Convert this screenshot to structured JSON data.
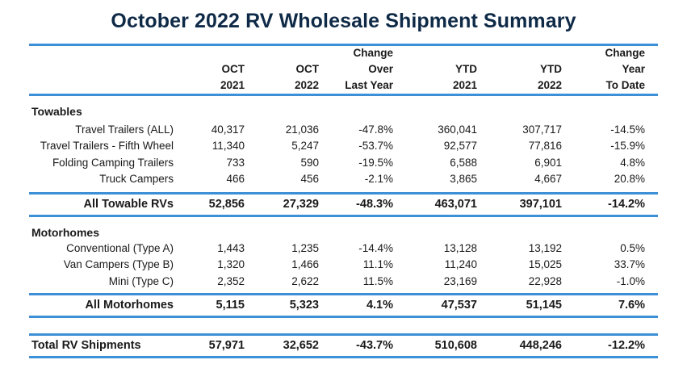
{
  "title": "October 2022 RV Wholesale Shipment Summary",
  "colors": {
    "title": "#0f2a47",
    "rule": "#3d8fd6"
  },
  "headers": [
    {
      "l1": "",
      "l2": "OCT",
      "l3": "2021"
    },
    {
      "l1": "",
      "l2": "OCT",
      "l3": "2022"
    },
    {
      "l1": "Change",
      "l2": "Over",
      "l3": "Last Year"
    },
    {
      "l1": "",
      "l2": "YTD",
      "l3": "2021"
    },
    {
      "l1": "",
      "l2": "YTD",
      "l3": "2022"
    },
    {
      "l1": "Change",
      "l2": "Year",
      "l3": "To Date"
    }
  ],
  "towables": {
    "heading": "Towables",
    "rows": [
      {
        "label": "Travel Trailers (ALL)",
        "v": [
          "40,317",
          "21,036",
          "-47.8%",
          "360,041",
          "307,717",
          "-14.5%"
        ]
      },
      {
        "label": "Travel Trailers - Fifth Wheel",
        "v": [
          "11,340",
          "5,247",
          "-53.7%",
          "92,577",
          "77,816",
          "-15.9%"
        ]
      },
      {
        "label": "Folding Camping Trailers",
        "v": [
          "733",
          "590",
          "-19.5%",
          "6,588",
          "6,901",
          "4.8%"
        ]
      },
      {
        "label": "Truck Campers",
        "v": [
          "466",
          "456",
          "-2.1%",
          "3,865",
          "4,667",
          "20.8%"
        ]
      }
    ],
    "subtotal": {
      "label": "All Towable RVs",
      "v": [
        "52,856",
        "27,329",
        "-48.3%",
        "463,071",
        "397,101",
        "-14.2%"
      ]
    }
  },
  "motorhomes": {
    "heading": "Motorhomes",
    "rows": [
      {
        "label": "Conventional (Type A)",
        "v": [
          "1,443",
          "1,235",
          "-14.4%",
          "13,128",
          "13,192",
          "0.5%"
        ]
      },
      {
        "label": "Van Campers (Type B)",
        "v": [
          "1,320",
          "1,466",
          "11.1%",
          "11,240",
          "15,025",
          "33.7%"
        ]
      },
      {
        "label": "Mini (Type C)",
        "v": [
          "2,352",
          "2,622",
          "11.5%",
          "23,169",
          "22,928",
          "-1.0%"
        ]
      }
    ],
    "subtotal": {
      "label": "All Motorhomes",
      "v": [
        "5,115",
        "5,323",
        "4.1%",
        "47,537",
        "51,145",
        "7.6%"
      ]
    }
  },
  "total": {
    "label": "Total RV Shipments",
    "v": [
      "57,971",
      "32,652",
      "-43.7%",
      "510,608",
      "448,246",
      "-12.2%"
    ]
  }
}
